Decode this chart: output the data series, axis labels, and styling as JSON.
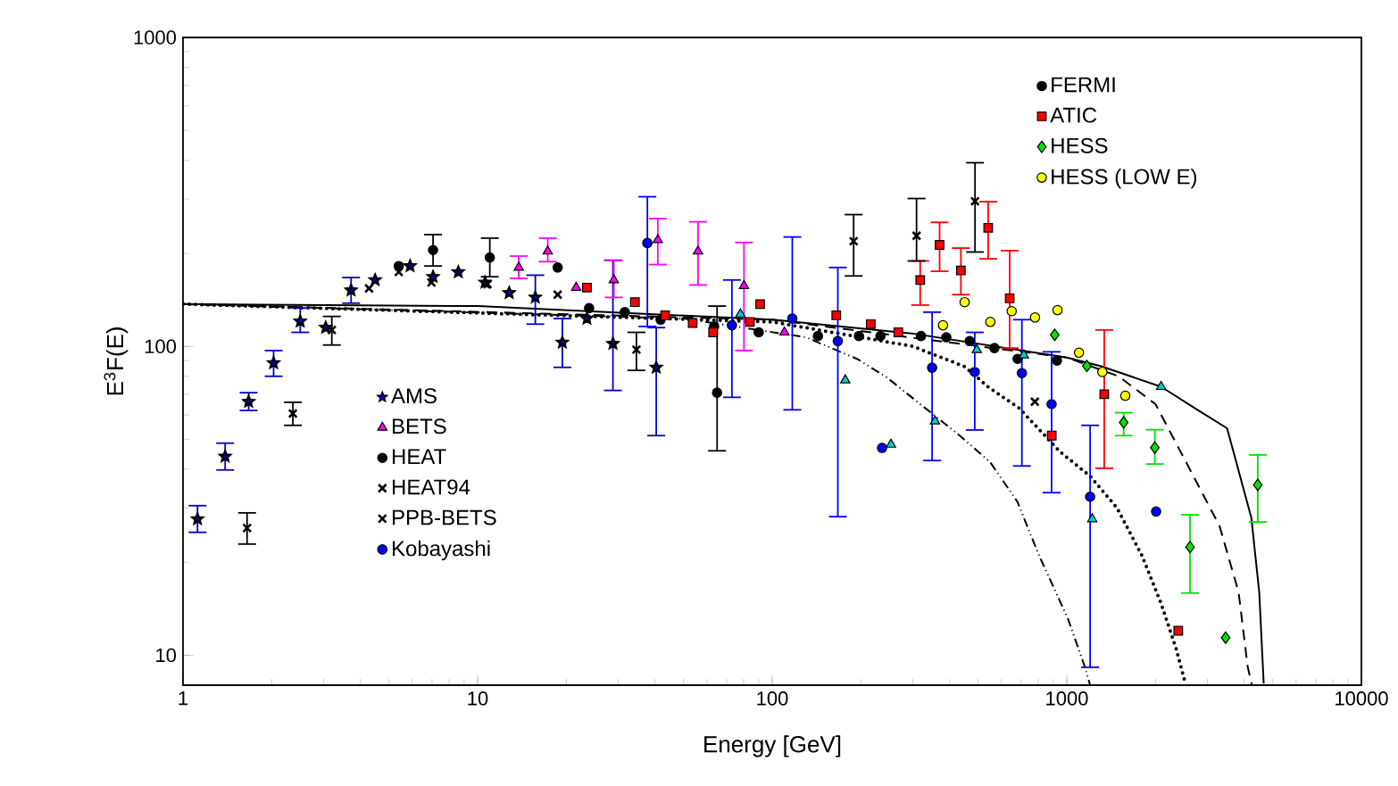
{
  "chart_data": {
    "type": "scatter",
    "xlabel": "Energy [GeV]",
    "ylabel": "E$^{3}$F(E)",
    "log": "xy",
    "xlim": [
      1,
      10000
    ],
    "ylim": [
      8,
      1000
    ],
    "xticks": [
      1,
      10,
      100,
      1000,
      10000
    ],
    "yticks": [
      10,
      100,
      1000
    ],
    "legend": "top right",
    "series": [
      {
        "type": "line",
        "line_style": "solid",
        "marker": "none",
        "color": "#000000",
        "x": [
          1,
          10,
          100,
          300,
          1000,
          1300,
          2090,
          2800,
          3500,
          4230,
          4500,
          4660
        ],
        "values": [
          137,
          135,
          122,
          110,
          92,
          86.4,
          74,
          62,
          54.3,
          27.9,
          16,
          8.1
        ]
      },
      {
        "type": "line",
        "line_style": "dashed",
        "marker": "none",
        "color": "#000000",
        "x": [
          1,
          100,
          1000,
          1500,
          2000,
          2560,
          3300,
          3830,
          4110,
          4250
        ],
        "values": [
          137,
          122,
          92,
          80,
          65,
          41.6,
          26.2,
          16,
          9.2,
          8
        ]
      },
      {
        "type": "line",
        "line_style": "dotted",
        "marker": "none",
        "color": "#000000",
        "x": [
          1,
          100,
          300,
          450,
          540,
          690,
          950,
          1200,
          1480,
          1800,
          2090,
          2350,
          2510
        ],
        "values": [
          137,
          120,
          100,
          86,
          74,
          63,
          45.5,
          38,
          30,
          21,
          14.7,
          10.5,
          8.3
        ]
      },
      {
        "type": "line",
        "line_style": "dashdot",
        "marker": "none",
        "color": "#000000",
        "x": [
          1,
          50,
          130,
          194,
          243,
          433,
          549,
          680,
          802,
          1010,
          1150,
          1200
        ],
        "values": [
          137,
          123,
          107,
          91.1,
          79.8,
          51.4,
          42.2,
          31.4,
          21.2,
          13.1,
          9.2,
          8
        ]
      },
      {
        "name": "FERMI",
        "marker": "circle",
        "color": "#000000",
        "x": [
          23.9,
          31.6,
          41.8,
          63.5,
          90,
          143,
          197,
          233,
          320,
          390,
          468,
          568,
          681,
          926
        ],
        "values": [
          133,
          129,
          122,
          116,
          111,
          108,
          108,
          108,
          108,
          107,
          104,
          98.7,
          91.1,
          89.9
        ]
      },
      {
        "name": "ATIC",
        "marker": "square",
        "color": "#ff0000",
        "x": [
          23.5,
          34.2,
          43.3,
          53.7,
          63,
          84,
          91,
          165,
          216,
          268,
          318,
          370,
          437,
          541,
          640,
          889,
          1340,
          2390
        ],
        "values": [
          155,
          139,
          126,
          119,
          111,
          120,
          137,
          126,
          118,
          111,
          164,
          213,
          176,
          242,
          143,
          51.4,
          70,
          12
        ],
        "errors": [
          null,
          null,
          null,
          null,
          null,
          null,
          null,
          null,
          null,
          null,
          [
            136,
            189
          ],
          [
            175,
            252
          ],
          [
            147,
            208
          ],
          [
            192,
            294
          ],
          [
            98.7,
            204
          ],
          null,
          [
            40.3,
            113
          ],
          null
        ]
      },
      {
        "name": "HESS",
        "marker": "diamond",
        "color": "#00e000",
        "x": [
          910,
          1170,
          1560,
          1990,
          2620,
          3460,
          4450
        ],
        "values": [
          109,
          86.4,
          56.7,
          47,
          22.4,
          11.4,
          35.6
        ],
        "errors": [
          null,
          null,
          [
            51.4,
            61
          ],
          [
            41.6,
            53.7
          ],
          [
            15.9,
            28.5
          ],
          null,
          [
            27,
            44.5
          ]
        ]
      },
      {
        "name": "HESS (LOW E)",
        "marker": "circle",
        "color": "#ffff00",
        "x": [
          380,
          450,
          550,
          650,
          780,
          930,
          1100,
          1320,
          1580
        ],
        "values": [
          117,
          139,
          120,
          130,
          124,
          131,
          95.4,
          82.6,
          69.2
        ]
      },
      {
        "name": "AMS",
        "marker": "star",
        "color": "#0000cc",
        "x": [
          1.12,
          1.39,
          1.67,
          2.03,
          2.5,
          3.05,
          3.72,
          4.49,
          5.4,
          5.9,
          7.06,
          8.6,
          10.6,
          12.8,
          15.7,
          19.4,
          23.5,
          28.8,
          40.4
        ],
        "values": [
          27.6,
          44,
          66.2,
          88.3,
          120.5,
          115,
          152,
          164,
          null,
          182,
          168,
          174,
          161,
          149,
          144,
          103,
          123,
          102,
          85.4
        ],
        "errors": [
          [
            25,
            30.5
          ],
          [
            39.8,
            48.6
          ],
          [
            62,
            70.8
          ],
          [
            80,
            96.9
          ],
          [
            111,
            133
          ],
          null,
          [
            138,
            167
          ],
          null,
          null,
          null,
          null,
          null,
          null,
          null,
          [
            118,
            170
          ],
          [
            85.5,
            123
          ],
          null,
          [
            72,
            190
          ],
          [
            51.4,
            115
          ]
        ]
      },
      {
        "name": "BETS",
        "marker": "triangle",
        "color": "#ff00ff",
        "x": [
          13.8,
          17.3,
          21.6,
          29,
          40.9,
          56,
          80.2,
          110
        ],
        "values": [
          180,
          203,
          155,
          164,
          221,
          203,
          157,
          111
        ],
        "errors": [
          [
            166,
            196
          ],
          [
            188,
            224
          ],
          null,
          [
            144,
            190
          ],
          [
            184,
            259
          ],
          [
            158,
            253
          ],
          [
            97,
            217
          ],
          null
        ]
      },
      {
        "name": "HEAT",
        "marker": "circle",
        "color": "#000000",
        "x": [
          5.4,
          7.06,
          11,
          18.7,
          65
        ],
        "values": [
          182,
          205,
          194,
          180,
          70.8
        ],
        "errors": [
          null,
          [
            182,
            230
          ],
          [
            168,
            224
          ],
          null,
          [
            45.9,
            135
          ]
        ]
      },
      {
        "name": "HEAT94",
        "marker": "cross",
        "color": "#000000",
        "x": [
          1.65,
          2.36,
          3.2,
          4.28,
          5.4,
          6.97,
          10.8,
          18.7,
          34.6
        ],
        "values": [
          25.8,
          60.6,
          113,
          154,
          174,
          161,
          159,
          147,
          97.6
        ],
        "errors": [
          [
            22.9,
            28.9
          ],
          [
            55.5,
            65.9
          ],
          [
            101,
            125
          ],
          null,
          null,
          null,
          null,
          null,
          [
            83.6,
            111
          ]
        ]
      },
      {
        "name": "PPB-BETS",
        "marker": "cross",
        "color": "#000000",
        "x": [
          189,
          309,
          488,
          779
        ],
        "values": [
          219,
          228,
          295,
          66.2
        ],
        "errors": [
          [
            169,
            267
          ],
          [
            189,
            301
          ],
          [
            202,
            393
          ],
          null
        ]
      },
      {
        "name": "Kobayashi",
        "marker": "circle",
        "color": "#0000ff",
        "x": [
          37.7,
          73,
          117,
          167,
          236,
          349,
          487,
          704,
          888,
          1200,
          2010
        ],
        "values": [
          216,
          117,
          123,
          104,
          46.9,
          85.3,
          82.6,
          81.9,
          65,
          32.6,
          29.2
        ],
        "errors": [
          [
            116,
            305
          ],
          [
            68.4,
            164
          ],
          [
            62.3,
            226
          ],
          [
            28.1,
            180
          ],
          null,
          [
            42.7,
            129
          ],
          [
            53.6,
            111
          ],
          [
            41,
            122
          ],
          [
            33.6,
            96
          ],
          [
            9.14,
            55.5
          ],
          null
        ]
      },
      {
        "marker": "triangle",
        "color": "#00cccc",
        "x": [
          78,
          177,
          253,
          357,
          495,
          715,
          1220,
          2090
        ],
        "values": [
          127,
          77.7,
          48.1,
          57.2,
          97.4,
          93.6,
          27.6,
          74
        ]
      }
    ]
  }
}
